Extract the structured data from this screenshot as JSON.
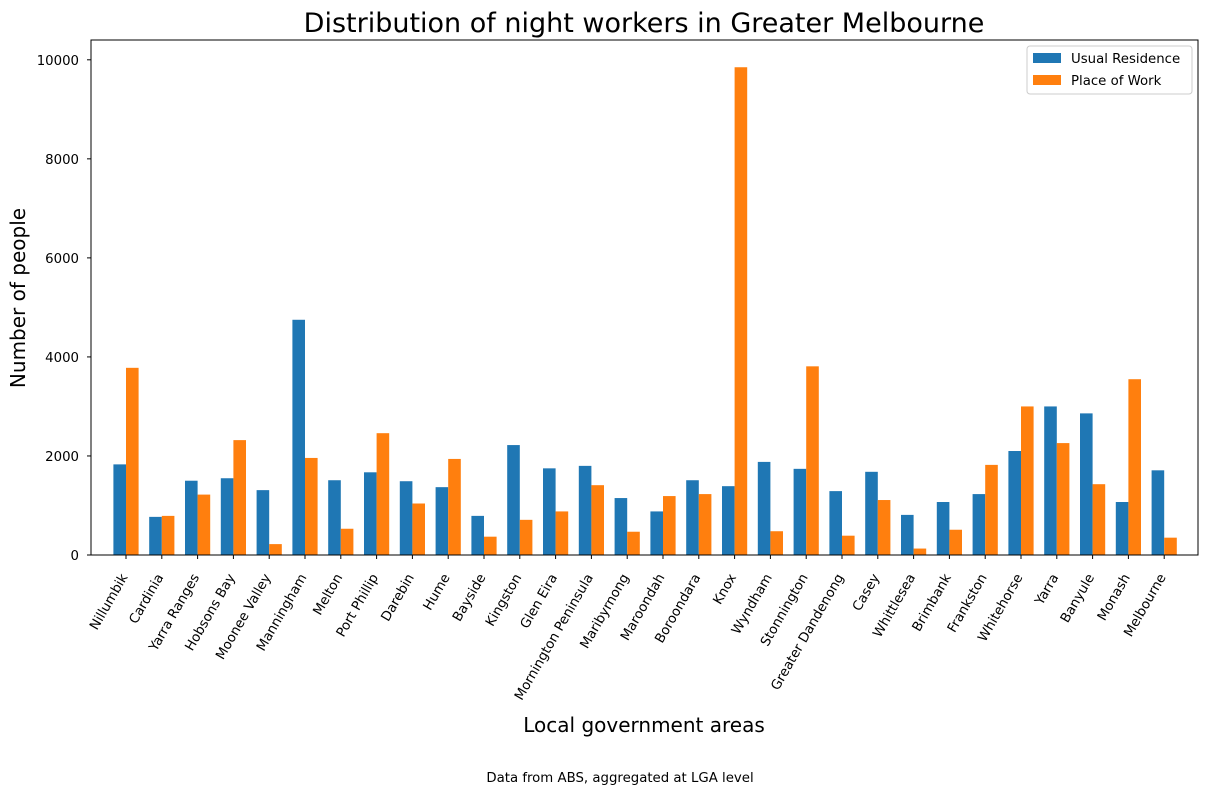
{
  "caption": "Data from ABS, aggregated at LGA level",
  "colors": {
    "usual_residence": "#1f77b4",
    "place_of_work": "#ff7f0e"
  },
  "chart_data": {
    "type": "bar",
    "title": "Distribution of night workers in Greater Melbourne",
    "xlabel": "Local government areas",
    "ylabel": "Number of people",
    "ylim": [
      0,
      10400
    ],
    "yticks": [
      0,
      2000,
      4000,
      6000,
      8000,
      10000
    ],
    "grid": false,
    "legend_position": "top-right",
    "categories": [
      "Nillumbik",
      "Cardinia",
      "Yarra Ranges",
      "Hobsons Bay",
      "Moonee Valley",
      "Manningham",
      "Melton",
      "Port Phillip",
      "Darebin",
      "Hume",
      "Bayside",
      "Kingston",
      "Glen Eira",
      "Mornington Peninsula",
      "Maribyrnong",
      "Maroondah",
      "Boroondara",
      "Knox",
      "Wyndham",
      "Stonnington",
      "Greater Dandenong",
      "Casey",
      "Whittlesea",
      "Brimbank",
      "Frankston",
      "Whitehorse",
      "Yarra",
      "Banyule",
      "Monash",
      "Melbourne"
    ],
    "series": [
      {
        "name": "Usual Residence",
        "values": [
          1830,
          770,
          1500,
          1550,
          1310,
          4750,
          1510,
          1670,
          1490,
          1370,
          790,
          2220,
          1750,
          1800,
          1150,
          880,
          1510,
          1390,
          1880,
          1740,
          1290,
          1680,
          810,
          1070,
          1230,
          2100,
          3000,
          2860,
          1070,
          1710
        ]
      },
      {
        "name": "Place of Work",
        "values": [
          3780,
          790,
          1220,
          2320,
          220,
          1960,
          530,
          2460,
          1040,
          1940,
          370,
          710,
          880,
          1410,
          470,
          1190,
          1230,
          9850,
          480,
          3810,
          390,
          1110,
          130,
          510,
          1820,
          3000,
          2260,
          1430,
          3550,
          350
        ]
      }
    ]
  }
}
